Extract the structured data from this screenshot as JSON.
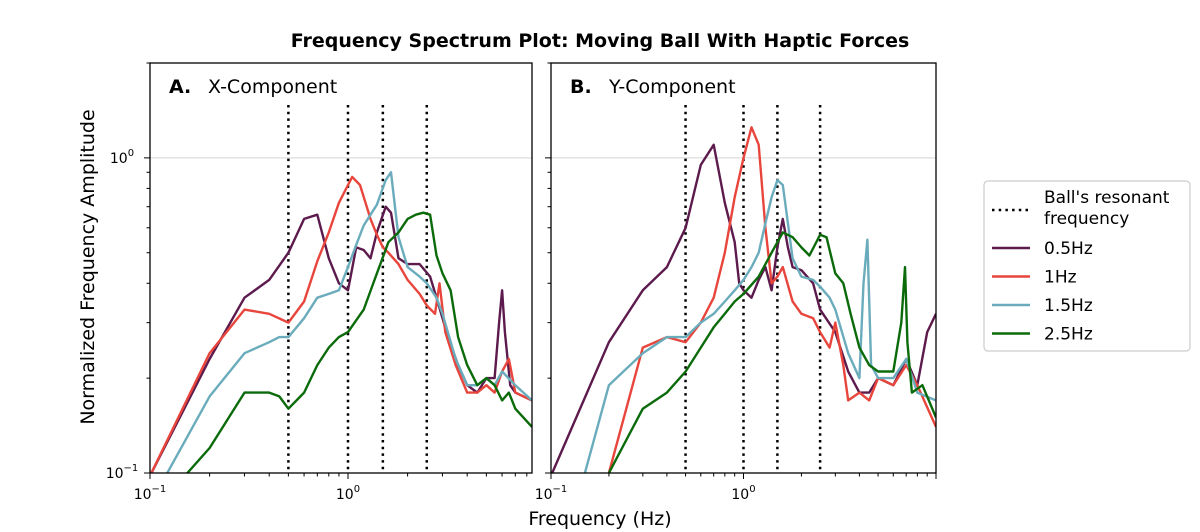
{
  "title": "Frequency Spectrum Plot: Moving Ball With Haptic Forces",
  "xlabel": "Frequency (Hz)",
  "ylabel": "Normalized Frequency Amplitude",
  "legend": {
    "placement": "right",
    "entries": [
      {
        "label": "Ball's resonant\nfrequency",
        "style": "dotted",
        "color": "#000000"
      },
      {
        "label": "0.5Hz",
        "style": "solid",
        "color": "#5c1a4d"
      },
      {
        "label": "1Hz",
        "style": "solid",
        "color": "#e8453c"
      },
      {
        "label": "1.5Hz",
        "style": "solid",
        "color": "#6aacbc"
      },
      {
        "label": "2.5Hz",
        "style": "solid",
        "color": "#0b6b0b"
      }
    ]
  },
  "chart_data": [
    {
      "type": "line",
      "panel_letter": "A.",
      "panel_title": "X-Component",
      "xscale": "log",
      "yscale": "log",
      "xlim": [
        0.1,
        8.5
      ],
      "ylim": [
        0.1,
        2.0
      ],
      "xticks": [
        {
          "value": 0.1,
          "label": "10",
          "exp": "−1"
        },
        {
          "value": 1,
          "label": "10",
          "exp": "0"
        }
      ],
      "yticks": [
        {
          "value": 0.1,
          "label": "10",
          "exp": "−1"
        },
        {
          "value": 1,
          "label": "10",
          "exp": "0"
        }
      ],
      "grid_y": [
        1.0
      ],
      "vlines": [
        0.5,
        1.0,
        1.5,
        2.5
      ],
      "series": [
        {
          "name": "0.5Hz",
          "color": "#5c1a4d",
          "points": [
            [
              0.1,
              0.098
            ],
            [
              0.2,
              0.23
            ],
            [
              0.3,
              0.36
            ],
            [
              0.4,
              0.41
            ],
            [
              0.5,
              0.5
            ],
            [
              0.6,
              0.64
            ],
            [
              0.7,
              0.66
            ],
            [
              0.8,
              0.48
            ],
            [
              0.9,
              0.4
            ],
            [
              1.0,
              0.38
            ],
            [
              1.1,
              0.52
            ],
            [
              1.2,
              0.51
            ],
            [
              1.3,
              0.48
            ],
            [
              1.4,
              0.58
            ],
            [
              1.55,
              0.7
            ],
            [
              1.65,
              0.67
            ],
            [
              1.8,
              0.48
            ],
            [
              2.0,
              0.46
            ],
            [
              2.3,
              0.46
            ],
            [
              2.6,
              0.42
            ],
            [
              2.8,
              0.36
            ],
            [
              3.2,
              0.27
            ],
            [
              3.6,
              0.22
            ],
            [
              4.0,
              0.19
            ],
            [
              4.5,
              0.18
            ],
            [
              5.0,
              0.2
            ],
            [
              5.5,
              0.2
            ],
            [
              5.8,
              0.3
            ],
            [
              6.0,
              0.38
            ],
            [
              6.2,
              0.28
            ],
            [
              6.6,
              0.19
            ],
            [
              7.0,
              0.18
            ],
            [
              8.5,
              0.17
            ]
          ]
        },
        {
          "name": "1Hz",
          "color": "#e8453c",
          "points": [
            [
              0.1,
              0.098
            ],
            [
              0.2,
              0.24
            ],
            [
              0.3,
              0.33
            ],
            [
              0.4,
              0.32
            ],
            [
              0.5,
              0.3
            ],
            [
              0.6,
              0.35
            ],
            [
              0.7,
              0.47
            ],
            [
              0.8,
              0.58
            ],
            [
              0.9,
              0.72
            ],
            [
              1.0,
              0.82
            ],
            [
              1.05,
              0.87
            ],
            [
              1.15,
              0.82
            ],
            [
              1.3,
              0.64
            ],
            [
              1.4,
              0.57
            ],
            [
              1.5,
              0.52
            ],
            [
              1.6,
              0.5
            ],
            [
              1.8,
              0.46
            ],
            [
              2.0,
              0.41
            ],
            [
              2.3,
              0.37
            ],
            [
              2.5,
              0.34
            ],
            [
              2.75,
              0.32
            ],
            [
              2.9,
              0.4
            ],
            [
              3.1,
              0.28
            ],
            [
              3.5,
              0.22
            ],
            [
              4.0,
              0.18
            ],
            [
              4.5,
              0.18
            ],
            [
              5.0,
              0.19
            ],
            [
              5.5,
              0.18
            ],
            [
              6.0,
              0.21
            ],
            [
              6.5,
              0.23
            ],
            [
              7.0,
              0.18
            ],
            [
              8.5,
              0.17
            ]
          ]
        },
        {
          "name": "1.5Hz",
          "color": "#6aacbc",
          "points": [
            [
              0.12,
              0.098
            ],
            [
              0.2,
              0.175
            ],
            [
              0.3,
              0.24
            ],
            [
              0.4,
              0.26
            ],
            [
              0.45,
              0.27
            ],
            [
              0.5,
              0.27
            ],
            [
              0.6,
              0.31
            ],
            [
              0.7,
              0.36
            ],
            [
              0.8,
              0.37
            ],
            [
              0.9,
              0.38
            ],
            [
              1.0,
              0.45
            ],
            [
              1.1,
              0.53
            ],
            [
              1.2,
              0.61
            ],
            [
              1.3,
              0.66
            ],
            [
              1.4,
              0.71
            ],
            [
              1.55,
              0.85
            ],
            [
              1.65,
              0.9
            ],
            [
              1.8,
              0.56
            ],
            [
              2.0,
              0.45
            ],
            [
              2.3,
              0.42
            ],
            [
              2.5,
              0.4
            ],
            [
              2.8,
              0.36
            ],
            [
              3.0,
              0.32
            ],
            [
              3.5,
              0.23
            ],
            [
              4.0,
              0.19
            ],
            [
              4.5,
              0.19
            ],
            [
              5.0,
              0.2
            ],
            [
              5.5,
              0.19
            ],
            [
              6.0,
              0.21
            ],
            [
              7.0,
              0.19
            ],
            [
              8.5,
              0.17
            ]
          ]
        },
        {
          "name": "2.5Hz",
          "color": "#0b6b0b",
          "points": [
            [
              0.15,
              0.098
            ],
            [
              0.2,
              0.12
            ],
            [
              0.3,
              0.18
            ],
            [
              0.4,
              0.18
            ],
            [
              0.45,
              0.175
            ],
            [
              0.5,
              0.16
            ],
            [
              0.6,
              0.18
            ],
            [
              0.7,
              0.22
            ],
            [
              0.8,
              0.25
            ],
            [
              0.9,
              0.27
            ],
            [
              1.0,
              0.28
            ],
            [
              1.2,
              0.33
            ],
            [
              1.4,
              0.43
            ],
            [
              1.6,
              0.54
            ],
            [
              1.8,
              0.58
            ],
            [
              2.0,
              0.64
            ],
            [
              2.2,
              0.66
            ],
            [
              2.4,
              0.67
            ],
            [
              2.6,
              0.66
            ],
            [
              2.8,
              0.49
            ],
            [
              3.0,
              0.43
            ],
            [
              3.3,
              0.38
            ],
            [
              3.6,
              0.27
            ],
            [
              4.0,
              0.22
            ],
            [
              4.5,
              0.19
            ],
            [
              5.0,
              0.2
            ],
            [
              5.5,
              0.19
            ],
            [
              6.0,
              0.17
            ],
            [
              6.5,
              0.18
            ],
            [
              7.0,
              0.16
            ],
            [
              8.5,
              0.14
            ]
          ]
        }
      ]
    },
    {
      "type": "line",
      "panel_letter": "B.",
      "panel_title": "Y-Component",
      "xscale": "log",
      "yscale": "log",
      "xlim": [
        0.1,
        10.0
      ],
      "ylim": [
        0.1,
        2.0
      ],
      "xticks": [
        {
          "value": 0.1,
          "label": "10",
          "exp": "−1"
        },
        {
          "value": 1,
          "label": "10",
          "exp": "0"
        }
      ],
      "yticks": [],
      "grid_y": [
        1.0
      ],
      "vlines": [
        0.5,
        1.0,
        1.5,
        2.5
      ],
      "series": [
        {
          "name": "0.5Hz",
          "color": "#5c1a4d",
          "points": [
            [
              0.1,
              0.098
            ],
            [
              0.2,
              0.26
            ],
            [
              0.3,
              0.38
            ],
            [
              0.4,
              0.45
            ],
            [
              0.5,
              0.6
            ],
            [
              0.6,
              0.95
            ],
            [
              0.7,
              1.1
            ],
            [
              0.8,
              0.72
            ],
            [
              0.9,
              0.54
            ],
            [
              0.95,
              0.4
            ],
            [
              1.0,
              0.38
            ],
            [
              1.1,
              0.36
            ],
            [
              1.2,
              0.41
            ],
            [
              1.3,
              0.45
            ],
            [
              1.4,
              0.38
            ],
            [
              1.5,
              0.52
            ],
            [
              1.6,
              0.64
            ],
            [
              1.7,
              0.52
            ],
            [
              1.8,
              0.45
            ],
            [
              2.0,
              0.44
            ],
            [
              2.3,
              0.4
            ],
            [
              2.5,
              0.33
            ],
            [
              3.0,
              0.28
            ],
            [
              3.5,
              0.21
            ],
            [
              4.0,
              0.18
            ],
            [
              4.5,
              0.18
            ],
            [
              5.0,
              0.2
            ],
            [
              6.0,
              0.19
            ],
            [
              7.0,
              0.23
            ],
            [
              8.0,
              0.19
            ],
            [
              9.0,
              0.28
            ],
            [
              10,
              0.32
            ]
          ]
        },
        {
          "name": "1Hz",
          "color": "#e8453c",
          "points": [
            [
              0.2,
              0.1
            ],
            [
              0.3,
              0.25
            ],
            [
              0.4,
              0.27
            ],
            [
              0.5,
              0.26
            ],
            [
              0.6,
              0.3
            ],
            [
              0.7,
              0.36
            ],
            [
              0.8,
              0.5
            ],
            [
              0.9,
              0.75
            ],
            [
              1.0,
              1.0
            ],
            [
              1.1,
              1.25
            ],
            [
              1.2,
              1.1
            ],
            [
              1.3,
              0.6
            ],
            [
              1.4,
              0.4
            ],
            [
              1.5,
              0.42
            ],
            [
              1.6,
              0.45
            ],
            [
              1.8,
              0.35
            ],
            [
              2.0,
              0.32
            ],
            [
              2.3,
              0.31
            ],
            [
              2.5,
              0.28
            ],
            [
              2.8,
              0.25
            ],
            [
              3.0,
              0.3
            ],
            [
              3.3,
              0.22
            ],
            [
              3.5,
              0.17
            ],
            [
              4.0,
              0.18
            ],
            [
              4.5,
              0.17
            ],
            [
              5.0,
              0.2
            ],
            [
              6.0,
              0.19
            ],
            [
              7.0,
              0.22
            ],
            [
              8.0,
              0.19
            ],
            [
              10,
              0.14
            ]
          ]
        },
        {
          "name": "1.5Hz",
          "color": "#6aacbc",
          "points": [
            [
              0.15,
              0.1
            ],
            [
              0.2,
              0.19
            ],
            [
              0.3,
              0.24
            ],
            [
              0.4,
              0.27
            ],
            [
              0.5,
              0.27
            ],
            [
              0.6,
              0.3
            ],
            [
              0.7,
              0.32
            ],
            [
              0.8,
              0.35
            ],
            [
              0.9,
              0.38
            ],
            [
              1.0,
              0.41
            ],
            [
              1.1,
              0.45
            ],
            [
              1.2,
              0.5
            ],
            [
              1.3,
              0.62
            ],
            [
              1.4,
              0.75
            ],
            [
              1.5,
              0.85
            ],
            [
              1.6,
              0.82
            ],
            [
              1.8,
              0.48
            ],
            [
              2.0,
              0.42
            ],
            [
              2.3,
              0.41
            ],
            [
              2.5,
              0.39
            ],
            [
              2.8,
              0.36
            ],
            [
              3.0,
              0.33
            ],
            [
              3.5,
              0.24
            ],
            [
              4.0,
              0.2
            ],
            [
              4.2,
              0.4
            ],
            [
              4.4,
              0.55
            ],
            [
              4.6,
              0.22
            ],
            [
              5.0,
              0.2
            ],
            [
              6.0,
              0.2
            ],
            [
              7.0,
              0.23
            ],
            [
              8.0,
              0.18
            ],
            [
              10,
              0.17
            ]
          ]
        },
        {
          "name": "2.5Hz",
          "color": "#0b6b0b",
          "points": [
            [
              0.2,
              0.1
            ],
            [
              0.3,
              0.16
            ],
            [
              0.4,
              0.18
            ],
            [
              0.5,
              0.21
            ],
            [
              0.6,
              0.25
            ],
            [
              0.7,
              0.29
            ],
            [
              0.8,
              0.32
            ],
            [
              0.9,
              0.35
            ],
            [
              1.0,
              0.37
            ],
            [
              1.2,
              0.42
            ],
            [
              1.4,
              0.5
            ],
            [
              1.6,
              0.58
            ],
            [
              1.8,
              0.56
            ],
            [
              2.0,
              0.52
            ],
            [
              2.2,
              0.49
            ],
            [
              2.5,
              0.57
            ],
            [
              2.7,
              0.56
            ],
            [
              3.0,
              0.43
            ],
            [
              3.3,
              0.4
            ],
            [
              3.6,
              0.32
            ],
            [
              4.0,
              0.25
            ],
            [
              4.5,
              0.22
            ],
            [
              5.0,
              0.21
            ],
            [
              6.0,
              0.21
            ],
            [
              6.6,
              0.3
            ],
            [
              6.9,
              0.45
            ],
            [
              7.1,
              0.26
            ],
            [
              7.5,
              0.18
            ],
            [
              8.5,
              0.19
            ],
            [
              10,
              0.15
            ]
          ]
        }
      ]
    }
  ]
}
